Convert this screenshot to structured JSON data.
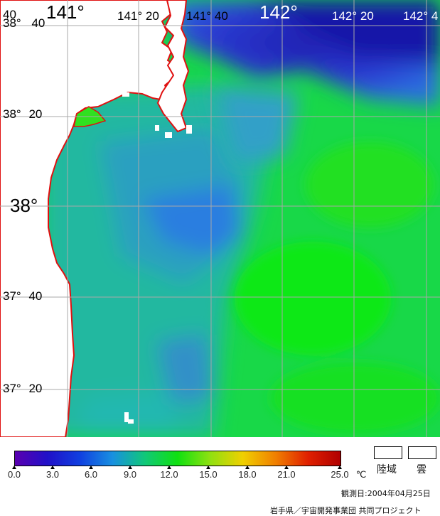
{
  "map": {
    "lat_labels": [
      {
        "id": "lat-38-40",
        "deg": "38°",
        "min": "40"
      },
      {
        "id": "lat-38-20",
        "deg": "38°",
        "min": "20"
      },
      {
        "id": "lat-38",
        "deg": "38°",
        "min": ""
      },
      {
        "id": "lat-37-40",
        "deg": "37°",
        "min": "40"
      },
      {
        "id": "lat-37-20",
        "deg": "37°",
        "min": "20"
      }
    ],
    "lon_labels": [
      {
        "id": "lon-140-40",
        "text": "40"
      },
      {
        "id": "lon-141",
        "text": "141°"
      },
      {
        "id": "lon-141-20",
        "text": "141°  20"
      },
      {
        "id": "lon-141-40",
        "text": "141°  40"
      },
      {
        "id": "lon-142",
        "text": "142°"
      },
      {
        "id": "lon-142-20",
        "text": "142°  20"
      },
      {
        "id": "lon-142-40",
        "text": "142°  4"
      }
    ]
  },
  "colorbar": {
    "ticks": [
      "0.0",
      "3.0",
      "6.0",
      "9.0",
      "12.0",
      "15.0",
      "18.0",
      "21.0",
      "25.0"
    ],
    "unit": "℃",
    "colors": [
      "#5a00b0",
      "#2010c8",
      "#1040e0",
      "#1890e0",
      "#10c878",
      "#10e010",
      "#90e010",
      "#f0d000",
      "#f08000",
      "#e02000",
      "#b00000"
    ]
  },
  "legend": {
    "land_label": "陸域",
    "cloud_label": "雲"
  },
  "footer": {
    "observation_date": "観測日:2004年04月25日",
    "credit": "岩手県／宇宙開発事業団 共同プロジェクト"
  }
}
